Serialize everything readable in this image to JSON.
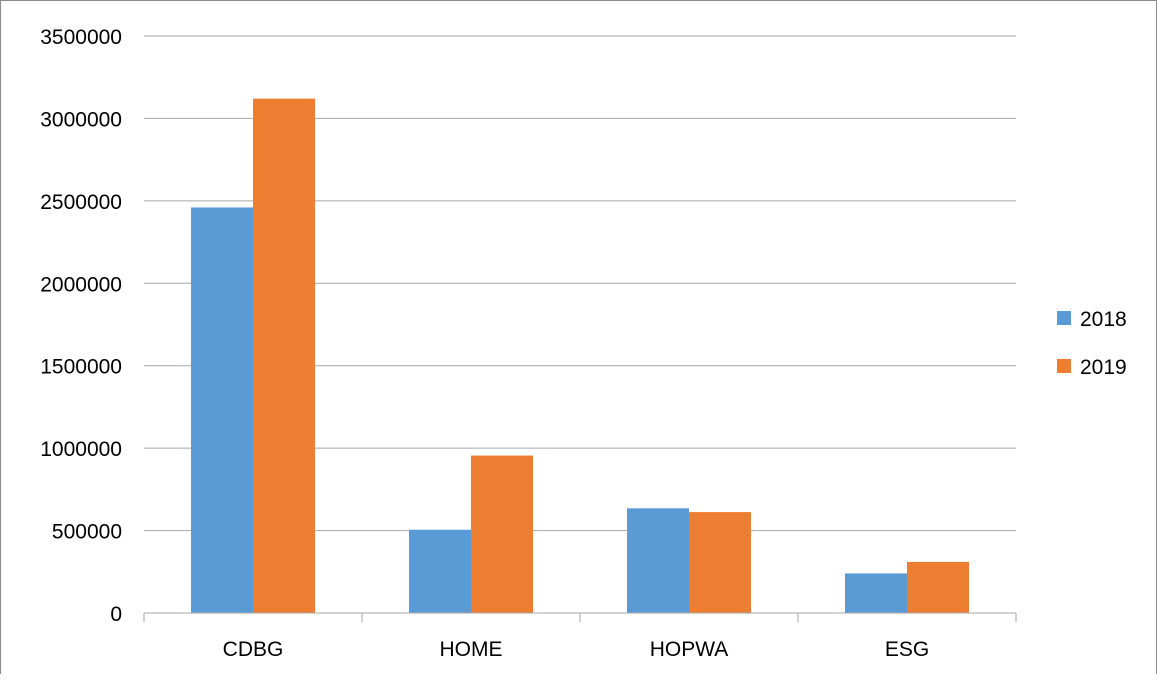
{
  "chart_data": {
    "type": "bar",
    "title": "",
    "xlabel": "",
    "ylabel": "",
    "categories": [
      "CDBG",
      "HOME",
      "HOPWA",
      "ESG"
    ],
    "series": [
      {
        "name": "2018",
        "color": "#5b9bd5",
        "values": [
          2460000,
          505000,
          635000,
          240000
        ]
      },
      {
        "name": "2019",
        "color": "#ed7d31",
        "values": [
          3120000,
          955000,
          612000,
          310000
        ]
      }
    ],
    "ylim": [
      0,
      3500000
    ],
    "yticks": [
      "0",
      "500000",
      "1000000",
      "1500000",
      "2000000",
      "2500000",
      "3000000",
      "3500000"
    ],
    "grid": true,
    "legend_position": "right",
    "gridline_color": "#a6a6a6"
  }
}
